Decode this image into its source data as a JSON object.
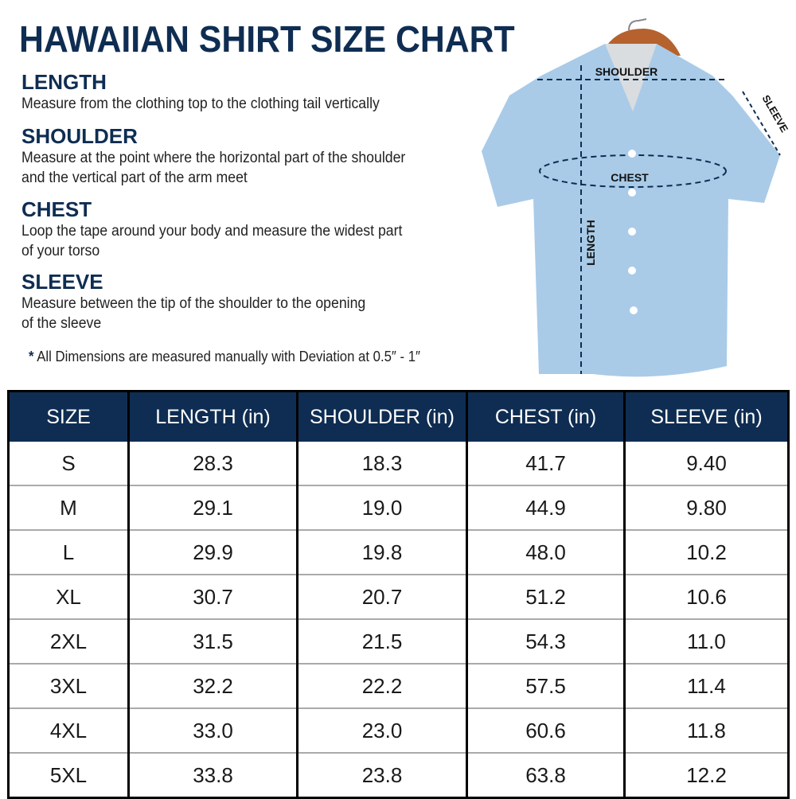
{
  "title": "HAWAIIAN SHIRT SIZE CHART",
  "sections": [
    {
      "heading": "LENGTH",
      "lines": [
        "Measure from the clothing top to the clothing tail vertically"
      ]
    },
    {
      "heading": "SHOULDER",
      "lines": [
        "Measure at the point where the horizontal part of the shoulder",
        "and the vertical part of the arm meet"
      ]
    },
    {
      "heading": "CHEST",
      "lines": [
        "Loop the tape around your body and measure the widest part",
        "of your torso"
      ]
    },
    {
      "heading": "SLEEVE",
      "lines": [
        "Measure between the tip of the shoulder to the opening",
        "of the sleeve"
      ]
    }
  ],
  "note": {
    "star": "*",
    "text": "All Dimensions are measured manually with Deviation at 0.5″ - 1″"
  },
  "diagram": {
    "shoulder": "SHOULDER",
    "sleeve": "SLEEVE",
    "chest": "CHEST",
    "length": "LENGTH"
  },
  "colors": {
    "navy": "#0f2d52",
    "shirt": "#a9cbe8"
  },
  "table": {
    "headers": [
      "SIZE",
      "LENGTH (in)",
      "SHOULDER (in)",
      "CHEST (in)",
      "SLEEVE (in)"
    ],
    "rows": [
      [
        "S",
        "28.3",
        "18.3",
        "41.7",
        "9.40"
      ],
      [
        "M",
        "29.1",
        "19.0",
        "44.9",
        "9.80"
      ],
      [
        "L",
        "29.9",
        "19.8",
        "48.0",
        "10.2"
      ],
      [
        "XL",
        "30.7",
        "20.7",
        "51.2",
        "10.6"
      ],
      [
        "2XL",
        "31.5",
        "21.5",
        "54.3",
        "11.0"
      ],
      [
        "3XL",
        "32.2",
        "22.2",
        "57.5",
        "11.4"
      ],
      [
        "4XL",
        "33.0",
        "23.0",
        "60.6",
        "11.8"
      ],
      [
        "5XL",
        "33.8",
        "23.8",
        "63.8",
        "12.2"
      ]
    ]
  }
}
